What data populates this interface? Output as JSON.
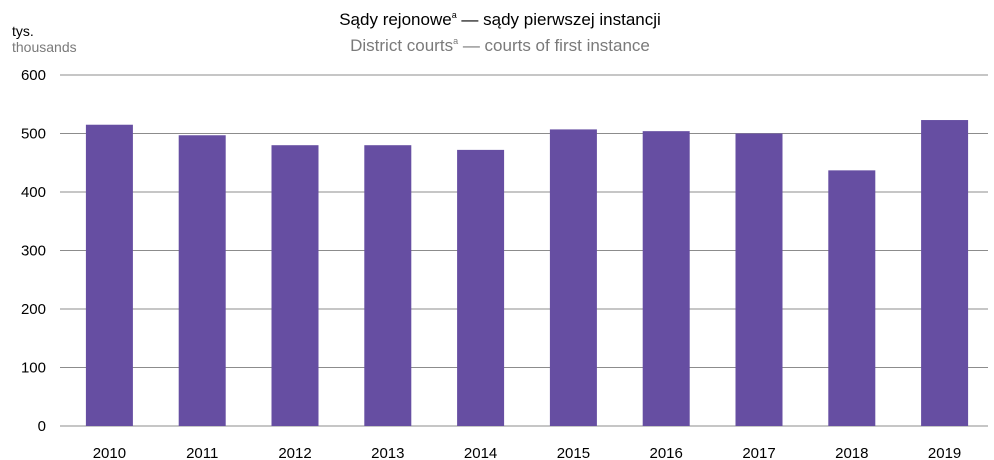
{
  "chart_data": {
    "type": "bar",
    "title": "Sądy rejonowe",
    "title_sup": "a",
    "title_suffix": " — sądy pierwszej instancji",
    "subtitle": "District courts",
    "subtitle_sup": "a",
    "subtitle_suffix": " — courts of first instance",
    "unit_pl": "tys.",
    "unit_en": "thousands",
    "categories": [
      "2010",
      "2011",
      "2012",
      "2013",
      "2014",
      "2015",
      "2016",
      "2017",
      "2018",
      "2019"
    ],
    "values": [
      515,
      497,
      480,
      480,
      472,
      507,
      504,
      500,
      437,
      523
    ],
    "ylim": [
      0,
      600
    ],
    "yticks": [
      0,
      100,
      200,
      300,
      400,
      500,
      600
    ],
    "grid": true,
    "bar_color": "#664ea2",
    "grid_color": "#8c8c8c"
  }
}
